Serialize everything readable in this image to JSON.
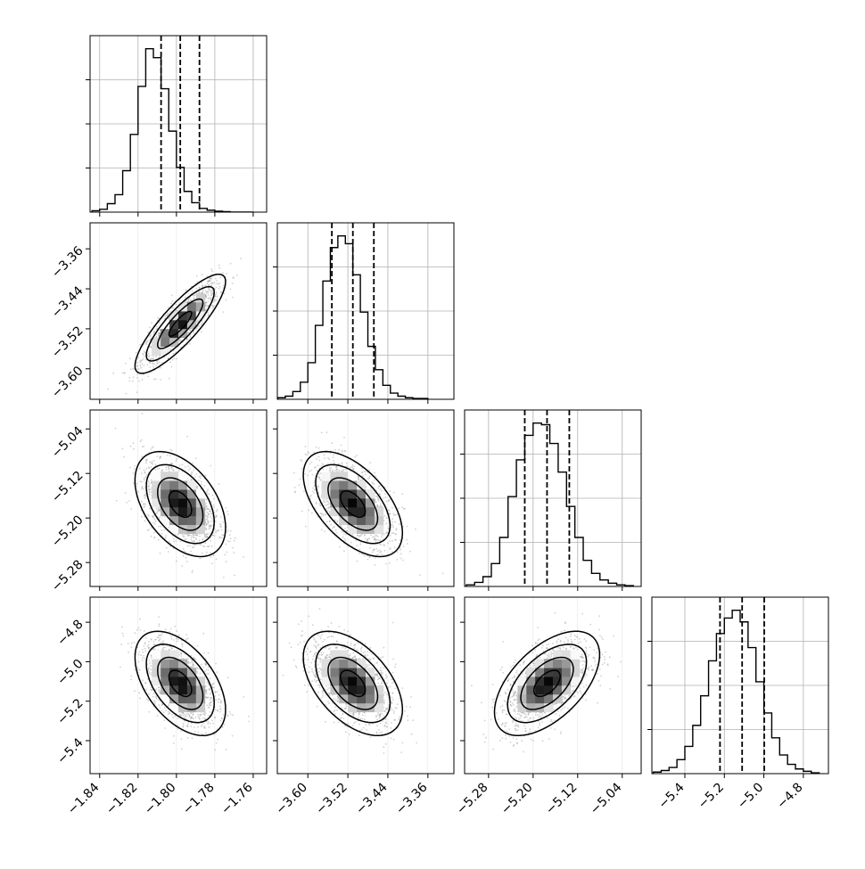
{
  "chart_data": {
    "type": "corner",
    "params": [
      {
        "range": [
          -1.845,
          -1.753
        ],
        "ticks": [
          -1.84,
          -1.82,
          -1.8,
          -1.78,
          -1.76
        ],
        "tick_labels": [
          "−1.84",
          "−1.82",
          "−1.80",
          "−1.78",
          "−1.76"
        ],
        "quantiles": [
          -1.808,
          -1.798,
          -1.788
        ],
        "hist": {
          "bin_edges": [
            -1.844,
            -1.84,
            -1.836,
            -1.832,
            -1.828,
            -1.824,
            -1.82,
            -1.816,
            -1.812,
            -1.808,
            -1.804,
            -1.8,
            -1.796,
            -1.792,
            -1.788,
            -1.784,
            -1.78,
            -1.776,
            -1.772,
            -1.768,
            -1.764,
            -1.76
          ],
          "counts": [
            3,
            6,
            18,
            37,
            88,
            165,
            267,
            347,
            328,
            262,
            172,
            95,
            44,
            20,
            8,
            4,
            2,
            1,
            0,
            0,
            0
          ]
        }
      },
      {
        "range": [
          -3.661,
          -3.308
        ],
        "ticks": [
          -3.6,
          -3.52,
          -3.44,
          -3.36
        ],
        "tick_labels": [
          "−3.60",
          "−3.52",
          "−3.44",
          "−3.36"
        ],
        "quantiles": [
          -3.552,
          -3.51,
          -3.468
        ],
        "hist": {
          "bin_edges": [
            -3.66,
            -3.645,
            -3.63,
            -3.615,
            -3.6,
            -3.585,
            -3.57,
            -3.555,
            -3.54,
            -3.525,
            -3.51,
            -3.495,
            -3.48,
            -3.465,
            -3.45,
            -3.435,
            -3.42,
            -3.405,
            -3.39,
            -3.375,
            -3.36
          ],
          "counts": [
            2,
            4,
            10,
            22,
            47,
            95,
            152,
            195,
            210,
            200,
            160,
            112,
            68,
            38,
            18,
            8,
            4,
            2,
            1,
            1
          ]
        }
      },
      {
        "range": [
          -5.323,
          -5.006
        ],
        "ticks": [
          -5.28,
          -5.2,
          -5.12,
          -5.04
        ],
        "tick_labels": [
          "−5.28",
          "−5.20",
          "−5.12",
          "−5.04"
        ],
        "quantiles": [
          -5.215,
          -5.175,
          -5.135
        ],
        "hist": {
          "bin_edges": [
            -5.32,
            -5.305,
            -5.29,
            -5.275,
            -5.26,
            -5.245,
            -5.23,
            -5.215,
            -5.2,
            -5.185,
            -5.17,
            -5.155,
            -5.14,
            -5.125,
            -5.11,
            -5.095,
            -5.08,
            -5.065,
            -5.05,
            -5.035,
            -5.02
          ],
          "counts": [
            2,
            5,
            12,
            28,
            60,
            110,
            155,
            185,
            200,
            198,
            175,
            140,
            98,
            60,
            32,
            16,
            8,
            4,
            2,
            1
          ]
        }
      },
      {
        "range": [
          -5.567,
          -4.673
        ],
        "ticks": [
          -5.4,
          -5.2,
          -5.0,
          -4.8
        ],
        "tick_labels": [
          "−5.4",
          "−5.2",
          "−5.0",
          "−4.8"
        ],
        "quantiles": [
          -5.222,
          -5.11,
          -4.998
        ],
        "hist": {
          "bin_edges": [
            -5.56,
            -5.52,
            -5.48,
            -5.44,
            -5.4,
            -5.36,
            -5.32,
            -5.28,
            -5.24,
            -5.2,
            -5.16,
            -5.12,
            -5.08,
            -5.04,
            -5.0,
            -4.96,
            -4.92,
            -4.88,
            -4.84,
            -4.8,
            -4.76,
            -4.72
          ],
          "counts": [
            2,
            4,
            8,
            18,
            35,
            62,
            100,
            145,
            180,
            200,
            210,
            195,
            162,
            118,
            78,
            46,
            24,
            12,
            6,
            3,
            1
          ]
        }
      }
    ],
    "pairs": [
      {
        "i": 1,
        "j": 0,
        "corr": 0.85
      },
      {
        "i": 2,
        "j": 0,
        "corr": -0.45
      },
      {
        "i": 2,
        "j": 1,
        "corr": -0.55
      },
      {
        "i": 3,
        "j": 0,
        "corr": -0.5
      },
      {
        "i": 3,
        "j": 1,
        "corr": -0.5
      },
      {
        "i": 3,
        "j": 2,
        "corr": 0.55
      }
    ],
    "contour_levels_sigma": [
      0.5,
      1.0,
      1.5,
      2.0
    ],
    "grid": true,
    "colors": {
      "line": "#000000",
      "points": "#9a9a9a",
      "grid": "#b0b0b0"
    }
  }
}
